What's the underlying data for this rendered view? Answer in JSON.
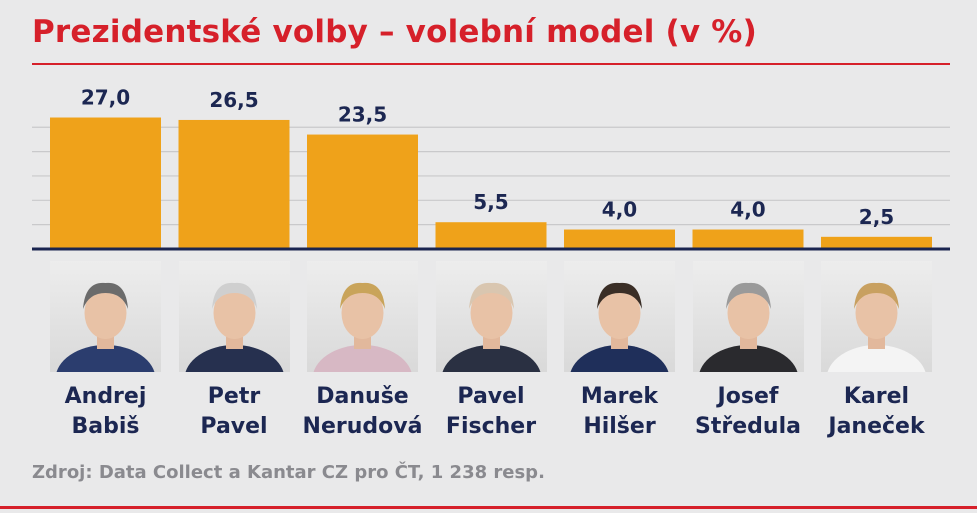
{
  "title": "Prezidentské volby – volební model (v %)",
  "source": "Zdroj: Data Collect a Kantar CZ pro ČT, 1 238 resp.",
  "colors": {
    "title": "#d6202a",
    "bar": "#efa21a",
    "text": "#1c2752",
    "source": "#8a8a8f"
  },
  "chart_data": {
    "type": "bar",
    "title": "Prezidentské volby – volební model (v %)",
    "categories": [
      "Andrej Babiš",
      "Petr Pavel",
      "Danuše Nerudová",
      "Pavel Fischer",
      "Marek Hilšer",
      "Josef Středula",
      "Karel Janeček"
    ],
    "values": [
      27.0,
      26.5,
      23.5,
      5.5,
      4.0,
      4.0,
      2.5
    ],
    "data_labels": [
      "27,0",
      "26,5",
      "23,5",
      "5,5",
      "4,0",
      "4,0",
      "2,5"
    ],
    "unit": "%",
    "ylim": [
      0,
      30
    ],
    "grid": true,
    "legend": "none"
  },
  "candidates": [
    {
      "first": "Andrej",
      "last": "Babiš",
      "photo": "portrait-andrej-babis"
    },
    {
      "first": "Petr",
      "last": "Pavel",
      "photo": "portrait-petr-pavel"
    },
    {
      "first": "Danuše",
      "last": "Nerudová",
      "photo": "portrait-danuse-nerudova"
    },
    {
      "first": "Pavel",
      "last": "Fischer",
      "photo": "portrait-pavel-fischer"
    },
    {
      "first": "Marek",
      "last": "Hilšer",
      "photo": "portrait-marek-hilser"
    },
    {
      "first": "Josef",
      "last": "Středula",
      "photo": "portrait-josef-stredula"
    },
    {
      "first": "Karel",
      "last": "Janeček",
      "photo": "portrait-karel-janecek"
    }
  ]
}
